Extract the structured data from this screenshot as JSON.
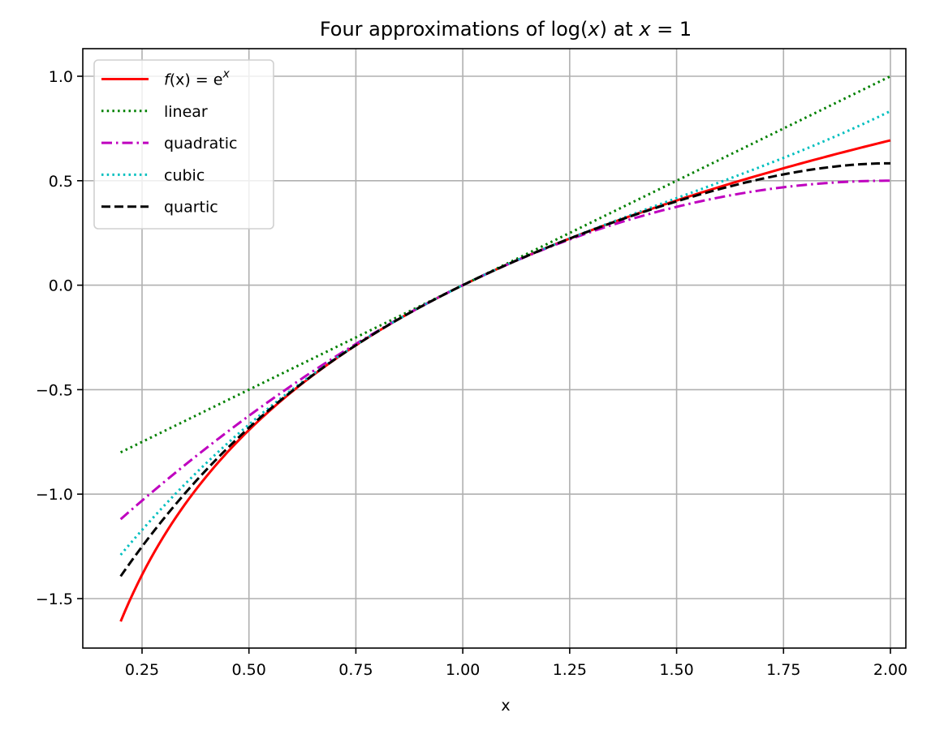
{
  "chart_data": {
    "type": "line",
    "title": "Four approximations of log(x) at x = 1",
    "title_parts": {
      "pre": "Four approximations of log(",
      "var1": "x",
      "mid": ") at ",
      "var2": "x",
      "post": " = 1"
    },
    "xlabel": "x",
    "ylabel": "",
    "xlim": [
      0.11,
      2.09
    ],
    "ylim": [
      -1.74,
      1.13
    ],
    "grid": true,
    "legend_position": "upper left",
    "x_ticks": [
      0.25,
      0.5,
      0.75,
      1.0,
      1.25,
      1.5,
      1.75,
      2.0
    ],
    "x_tick_labels": [
      "0.25",
      "0.50",
      "0.75",
      "1.00",
      "1.25",
      "1.50",
      "1.75",
      "2.00"
    ],
    "y_ticks": [
      1.0,
      0.5,
      0.0,
      -0.5,
      -1.0,
      -1.5
    ],
    "y_tick_labels": [
      "1.0",
      "0.5",
      "0.0",
      "−0.5",
      "−1.0",
      "−1.5"
    ],
    "x": [
      0.2,
      0.3,
      0.4,
      0.5,
      0.6,
      0.7,
      0.8,
      0.9,
      1.0,
      1.1,
      1.2,
      1.3,
      1.4,
      1.5,
      1.6,
      1.7,
      1.8,
      1.9,
      2.0
    ],
    "series": [
      {
        "name": "f(x) = e^x",
        "legend_pre": "f",
        "legend_mid": "(x) = e",
        "legend_sup": "x",
        "color": "#ff0000",
        "style": "solid",
        "values": [
          -1.609,
          -1.204,
          -0.916,
          -0.693,
          -0.511,
          -0.357,
          -0.223,
          -0.105,
          0.0,
          0.095,
          0.182,
          0.262,
          0.336,
          0.405,
          0.47,
          0.531,
          0.588,
          0.642,
          0.693
        ]
      },
      {
        "name": "linear",
        "color": "#008000",
        "style": "dotted",
        "values": [
          -0.8,
          -0.7,
          -0.6,
          -0.5,
          -0.4,
          -0.3,
          -0.2,
          -0.1,
          0.0,
          0.1,
          0.2,
          0.3,
          0.4,
          0.5,
          0.6,
          0.7,
          0.8,
          0.9,
          1.0
        ]
      },
      {
        "name": "quadratic",
        "color": "#bf00bf",
        "style": "dashdot",
        "values": [
          -1.12,
          -0.945,
          -0.78,
          -0.625,
          -0.48,
          -0.345,
          -0.22,
          -0.105,
          0.0,
          0.095,
          0.18,
          0.255,
          0.32,
          0.375,
          0.42,
          0.455,
          0.48,
          0.495,
          0.5
        ]
      },
      {
        "name": "cubic",
        "color": "#00bfbf",
        "style": "dotted",
        "values": [
          -1.291,
          -1.059,
          -0.851,
          -0.667,
          -0.501,
          -0.354,
          -0.223,
          -0.105,
          0.0,
          0.095,
          0.183,
          0.264,
          0.341,
          0.417,
          0.492,
          0.569,
          0.651,
          0.738,
          0.833
        ]
      },
      {
        "name": "quartic",
        "color": "#000000",
        "style": "dashed",
        "values": [
          -1.393,
          -1.119,
          -0.883,
          -0.682,
          -0.507,
          -0.356,
          -0.223,
          -0.105,
          0.0,
          0.095,
          0.182,
          0.262,
          0.335,
          0.404,
          0.468,
          0.529,
          0.586,
          0.64,
          0.583
        ]
      }
    ]
  }
}
